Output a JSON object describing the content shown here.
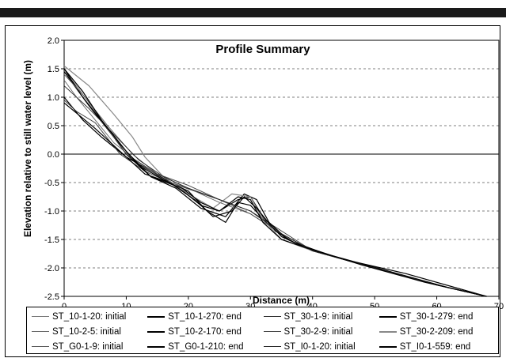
{
  "chart_data": {
    "type": "line",
    "title": "Profile Summary",
    "xlabel": "Distance (m)",
    "ylabel": "Elevation relative to still water level (m)",
    "xlim": [
      0,
      70
    ],
    "ylim": [
      -2.5,
      2.0
    ],
    "xticks": [
      "0",
      "10",
      "20",
      "30",
      "40",
      "50",
      "60",
      "70"
    ],
    "yticks": [
      "2.0",
      "1.5",
      "1.0",
      "0.5",
      "0.0",
      "-0.5",
      "-1.0",
      "-1.5",
      "-2.0",
      "-2.5"
    ],
    "grid": "horizontal dashed",
    "legend_position": "bottom",
    "series": [
      {
        "name": "ST_10-1-20: initial",
        "color": "#7a7a7a",
        "x": [
          0,
          2,
          5,
          10,
          15,
          20,
          25,
          30,
          35,
          40,
          50,
          60,
          68
        ],
        "y": [
          1.45,
          1.2,
          0.75,
          0.0,
          -0.35,
          -0.6,
          -0.8,
          -1.0,
          -1.4,
          -1.7,
          -2.0,
          -2.3,
          -2.5
        ]
      },
      {
        "name": "ST_10-1-270: end",
        "color": "#000000",
        "x": [
          0,
          3,
          6,
          10,
          14,
          18,
          22,
          25,
          28,
          30,
          32,
          35,
          38,
          45,
          55,
          68
        ],
        "y": [
          1.0,
          0.6,
          0.3,
          -0.05,
          -0.3,
          -0.55,
          -0.9,
          -1.0,
          -0.8,
          -0.75,
          -1.1,
          -1.45,
          -1.6,
          -1.85,
          -2.1,
          -2.5
        ]
      },
      {
        "name": "ST_30-1-9: initial",
        "color": "#333333",
        "x": [
          0,
          2,
          5,
          9,
          13,
          17,
          21,
          25,
          30,
          35,
          40,
          50,
          60,
          68
        ],
        "y": [
          0.95,
          0.75,
          0.55,
          0.0,
          -0.3,
          -0.5,
          -0.65,
          -0.8,
          -1.0,
          -1.35,
          -1.7,
          -2.0,
          -2.3,
          -2.5
        ]
      },
      {
        "name": "ST_30-1-279: end",
        "color": "#000000",
        "x": [
          0,
          3,
          7,
          10,
          14,
          18,
          22,
          26,
          29,
          31,
          33,
          36,
          40,
          50,
          60,
          68
        ],
        "y": [
          1.5,
          1.0,
          0.45,
          0.0,
          -0.4,
          -0.6,
          -0.95,
          -1.1,
          -0.7,
          -0.8,
          -1.2,
          -1.5,
          -1.7,
          -2.0,
          -2.3,
          -2.5
        ]
      },
      {
        "name": "ST_10-2-5: initial",
        "color": "#666666",
        "x": [
          0,
          2,
          5,
          8,
          12,
          16,
          20,
          25,
          30,
          35,
          40,
          50,
          60,
          68
        ],
        "y": [
          1.3,
          1.0,
          0.6,
          0.2,
          -0.15,
          -0.45,
          -0.6,
          -0.85,
          -1.05,
          -1.4,
          -1.7,
          -2.0,
          -2.3,
          -2.5
        ]
      },
      {
        "name": "ST_10-2-170: end",
        "color": "#000000",
        "x": [
          0,
          4,
          8,
          12,
          16,
          20,
          23,
          26,
          28,
          30,
          33,
          36,
          40,
          50,
          60,
          68
        ],
        "y": [
          1.45,
          0.85,
          0.3,
          -0.2,
          -0.45,
          -0.65,
          -1.0,
          -1.2,
          -0.85,
          -0.9,
          -1.25,
          -1.5,
          -1.7,
          -2.0,
          -2.3,
          -2.5
        ]
      },
      {
        "name": "ST_30-2-9: initial",
        "color": "#444444",
        "x": [
          0,
          3,
          6,
          10,
          15,
          20,
          25,
          30,
          35,
          40,
          50,
          60,
          68
        ],
        "y": [
          1.5,
          1.1,
          0.6,
          0.0,
          -0.35,
          -0.55,
          -0.8,
          -1.05,
          -1.4,
          -1.7,
          -2.0,
          -2.3,
          -2.5
        ]
      },
      {
        "name": "ST_30-2-209: end",
        "color": "#888888",
        "x": [
          0,
          4,
          8,
          11,
          13,
          16,
          20,
          24,
          27,
          30,
          32,
          35,
          40,
          50,
          60,
          68
        ],
        "y": [
          1.55,
          1.2,
          0.7,
          0.3,
          -0.05,
          -0.4,
          -0.7,
          -0.95,
          -0.7,
          -0.75,
          -1.15,
          -1.5,
          -1.7,
          -2.0,
          -2.3,
          -2.5
        ]
      },
      {
        "name": "ST_G0-1-9: initial",
        "color": "#555555",
        "x": [
          0,
          3,
          7,
          11,
          15,
          20,
          25,
          30,
          35,
          40,
          50,
          60,
          68
        ],
        "y": [
          1.4,
          1.05,
          0.5,
          0.0,
          -0.35,
          -0.55,
          -0.8,
          -1.0,
          -1.4,
          -1.7,
          -2.0,
          -2.3,
          -2.5
        ]
      },
      {
        "name": "ST_G0-1-210: end",
        "color": "#000000",
        "x": [
          0,
          5,
          9,
          13,
          17,
          21,
          24,
          27,
          29,
          31,
          34,
          37,
          42,
          52,
          62,
          68
        ],
        "y": [
          0.9,
          0.45,
          0.05,
          -0.35,
          -0.5,
          -0.8,
          -1.1,
          -1.0,
          -0.75,
          -0.95,
          -1.35,
          -1.55,
          -1.75,
          -2.05,
          -2.35,
          -2.5
        ]
      },
      {
        "name": "ST_I0-1-20: initial",
        "color": "#222222",
        "x": [
          0,
          4,
          8,
          12,
          16,
          20,
          25,
          30,
          35,
          40,
          50,
          60,
          68
        ],
        "y": [
          1.2,
          0.8,
          0.35,
          -0.1,
          -0.4,
          -0.6,
          -0.8,
          -1.0,
          -1.4,
          -1.7,
          -2.0,
          -2.3,
          -2.5
        ]
      },
      {
        "name": "ST_I0-1-559: end",
        "color": "#000000",
        "x": [
          0,
          3,
          6,
          10,
          14,
          19,
          22,
          25,
          28,
          30,
          32,
          35,
          39,
          48,
          58,
          68
        ],
        "y": [
          1.5,
          1.1,
          0.6,
          0.05,
          -0.4,
          -0.6,
          -0.85,
          -1.0,
          -0.75,
          -0.8,
          -1.2,
          -1.5,
          -1.65,
          -1.95,
          -2.25,
          -2.5
        ]
      }
    ]
  }
}
